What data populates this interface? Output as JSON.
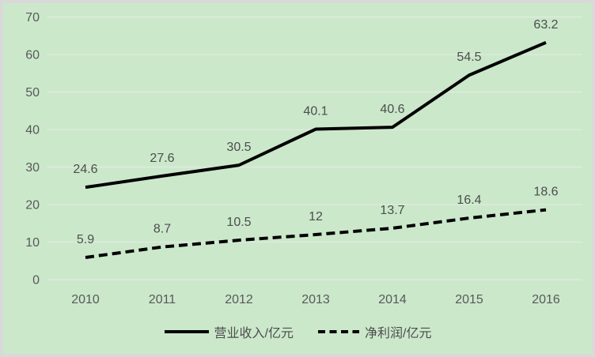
{
  "chart_data": {
    "type": "line",
    "title": "",
    "xlabel": "",
    "ylabel": "",
    "categories": [
      "2010",
      "2011",
      "2012",
      "2013",
      "2014",
      "2015",
      "2016"
    ],
    "series": [
      {
        "name": "营业收入/亿元",
        "line_style": "solid",
        "values": [
          24.6,
          27.6,
          30.5,
          40.1,
          40.6,
          54.5,
          63.2
        ],
        "labels": [
          "24.6",
          "27.6",
          "30.5",
          "40.1",
          "40.6",
          "54.5",
          "63.2"
        ]
      },
      {
        "name": "净利润/亿元",
        "line_style": "dashed",
        "values": [
          5.9,
          8.7,
          10.5,
          12,
          13.7,
          16.4,
          18.6
        ],
        "labels": [
          "5.9",
          "8.7",
          "10.5",
          "12",
          "13.7",
          "16.4",
          "18.6"
        ]
      }
    ],
    "y_ticks": [
      0,
      10,
      20,
      30,
      40,
      50,
      60,
      70
    ],
    "ylim": [
      0,
      70
    ],
    "grid": true,
    "data_labels": true,
    "legend_position": "bottom",
    "colors": {
      "background": "#cbe8cb",
      "gridline": "#ddebdd",
      "line": "#000000",
      "axis_text": "#595959",
      "label_text": "#4d4d4d",
      "border": "#d9d9d9"
    }
  }
}
